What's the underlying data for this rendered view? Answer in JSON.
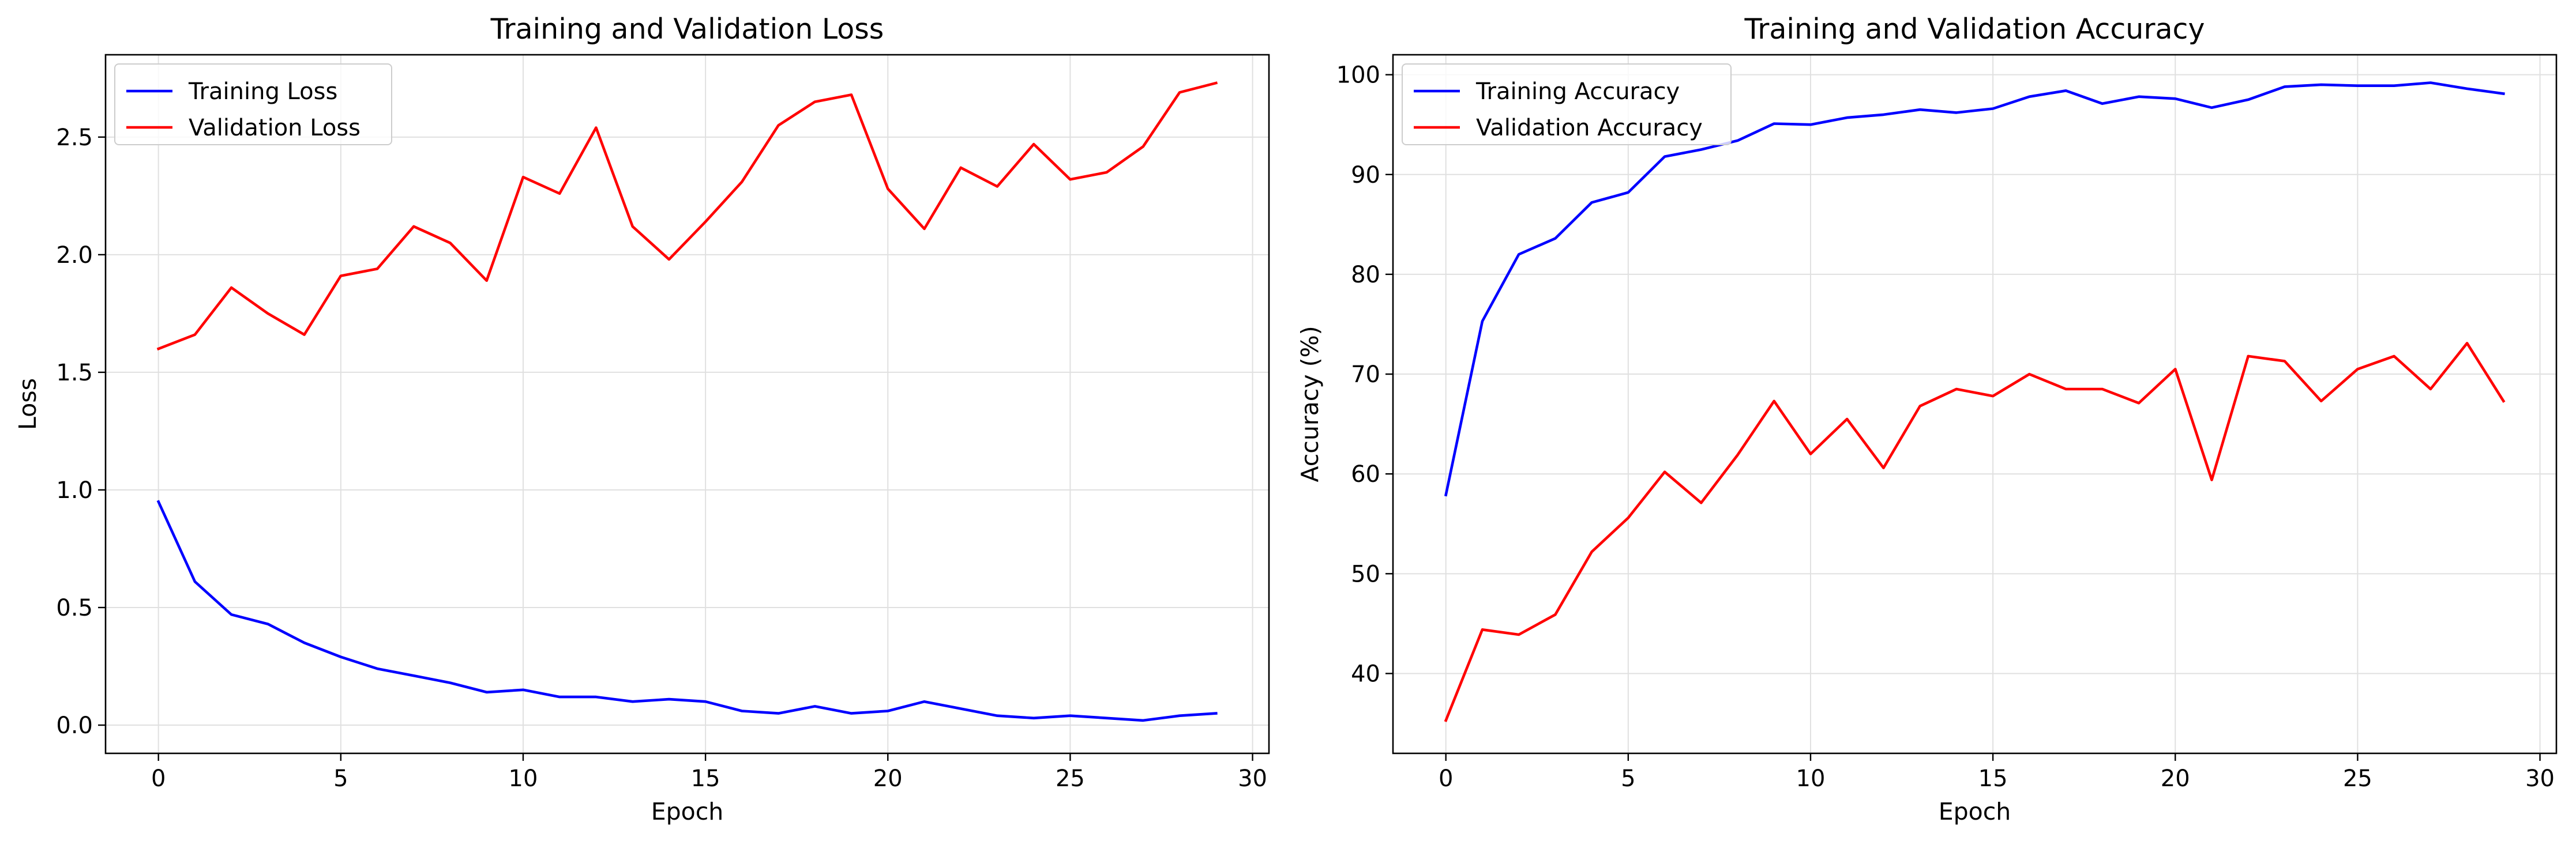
{
  "chart_data": [
    {
      "type": "line",
      "title": "Training and Validation Loss",
      "xlabel": "Epoch",
      "ylabel": "Loss",
      "xlim": [
        -1.45,
        30.45
      ],
      "ylim": [
        -0.12,
        2.85
      ],
      "xticks": [
        0,
        5,
        10,
        15,
        20,
        25,
        30
      ],
      "yticks": [
        0.0,
        0.5,
        1.0,
        1.5,
        2.0,
        2.5
      ],
      "ytick_labels": [
        "0.0",
        "0.5",
        "1.0",
        "1.5",
        "2.0",
        "2.5"
      ],
      "grid": true,
      "legend_position": "top-left",
      "x": [
        0,
        1,
        2,
        3,
        4,
        5,
        6,
        7,
        8,
        9,
        10,
        11,
        12,
        13,
        14,
        15,
        16,
        17,
        18,
        19,
        20,
        21,
        22,
        23,
        24,
        25,
        26,
        27,
        28,
        29
      ],
      "series": [
        {
          "name": "Training Loss",
          "color": "#0000ff",
          "values": [
            0.95,
            0.61,
            0.47,
            0.43,
            0.35,
            0.29,
            0.24,
            0.21,
            0.18,
            0.14,
            0.15,
            0.12,
            0.12,
            0.1,
            0.11,
            0.1,
            0.06,
            0.05,
            0.08,
            0.05,
            0.06,
            0.1,
            0.07,
            0.04,
            0.03,
            0.04,
            0.03,
            0.02,
            0.04,
            0.05
          ]
        },
        {
          "name": "Validation Loss",
          "color": "#ff0000",
          "values": [
            1.6,
            1.66,
            1.86,
            1.75,
            1.66,
            1.91,
            1.94,
            2.12,
            2.05,
            1.89,
            2.33,
            2.26,
            2.54,
            2.12,
            1.98,
            2.14,
            2.31,
            2.55,
            2.65,
            2.68,
            2.28,
            2.11,
            2.37,
            2.29,
            2.47,
            2.32,
            2.35,
            2.46,
            2.69,
            2.73
          ]
        }
      ]
    },
    {
      "type": "line",
      "title": "Training and Validation Accuracy",
      "xlabel": "Epoch",
      "ylabel": "Accuracy (%)",
      "xlim": [
        -1.45,
        30.45
      ],
      "ylim": [
        32.0,
        102.0
      ],
      "xticks": [
        0,
        5,
        10,
        15,
        20,
        25,
        30
      ],
      "yticks": [
        40,
        50,
        60,
        70,
        80,
        90,
        100
      ],
      "ytick_labels": [
        "40",
        "50",
        "60",
        "70",
        "80",
        "90",
        "100"
      ],
      "grid": true,
      "legend_position": "top-left",
      "x": [
        0,
        1,
        2,
        3,
        4,
        5,
        6,
        7,
        8,
        9,
        10,
        11,
        12,
        13,
        14,
        15,
        16,
        17,
        18,
        19,
        20,
        21,
        22,
        23,
        24,
        25,
        26,
        27,
        28,
        29
      ],
      "series": [
        {
          "name": "Training Accuracy",
          "color": "#0000ff",
          "values": [
            57.9,
            75.3,
            82.0,
            83.6,
            87.2,
            88.2,
            91.8,
            92.5,
            93.4,
            95.1,
            95.0,
            95.7,
            96.0,
            96.5,
            96.2,
            96.6,
            97.8,
            98.4,
            97.1,
            97.8,
            97.6,
            96.7,
            97.5,
            98.8,
            99.0,
            98.9,
            98.9,
            99.2,
            98.6,
            98.1
          ]
        },
        {
          "name": "Validation Accuracy",
          "color": "#ff0000",
          "values": [
            35.3,
            44.4,
            43.9,
            45.9,
            52.2,
            55.6,
            60.2,
            57.1,
            61.9,
            67.3,
            62.0,
            65.5,
            60.6,
            66.8,
            68.5,
            67.8,
            70.0,
            68.5,
            68.5,
            67.1,
            70.5,
            59.4,
            71.8,
            71.3,
            67.3,
            70.5,
            71.8,
            68.5,
            73.1,
            67.3
          ]
        }
      ]
    }
  ]
}
